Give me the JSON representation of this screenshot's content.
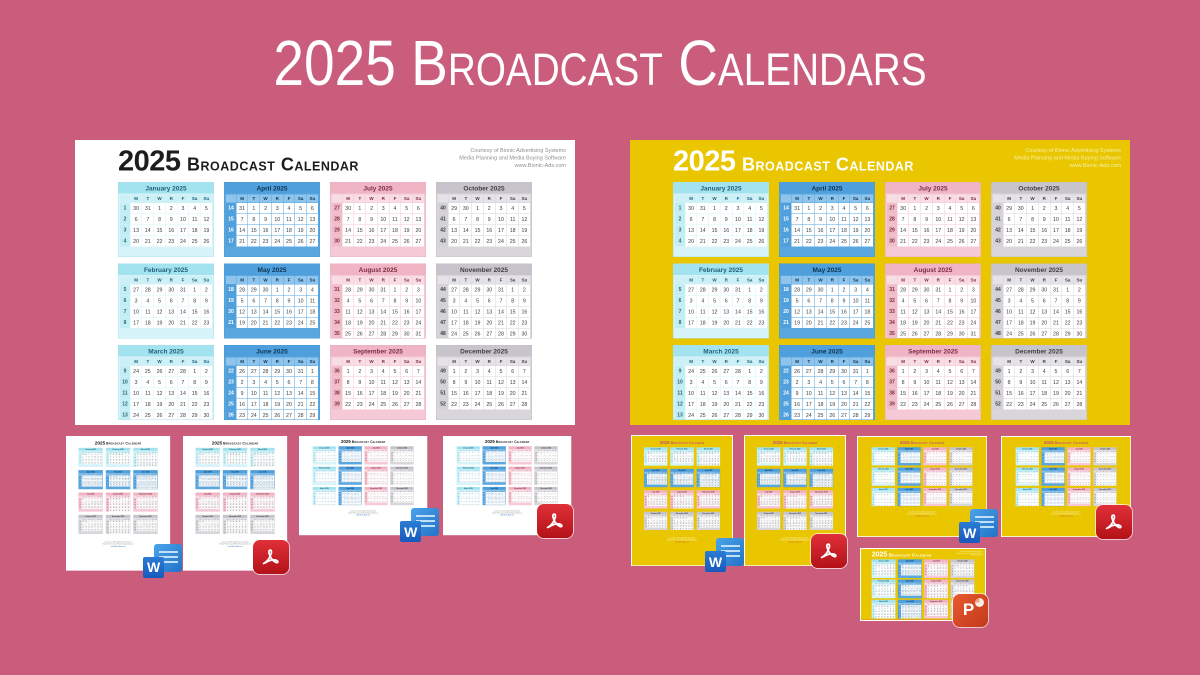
{
  "page": {
    "title": "2025 Broadcast Calendars",
    "background": "#ca5d7b",
    "yellow": "#eac600"
  },
  "calendar": {
    "year": "2025",
    "title": "Broadcast Calendar",
    "courtesy": [
      "Courtesy of Bionic Advertising Systems",
      "Media Planning and Media Buying Software",
      "www.Bionic-Ads.com"
    ],
    "day_headers": [
      "M",
      "T",
      "W",
      "R",
      "F",
      "Sa",
      "Su"
    ],
    "months": [
      {
        "name": "January 2025",
        "quarter": "q1",
        "weeks": [
          [
            1,
            30,
            31,
            1,
            2,
            3,
            4,
            5
          ],
          [
            2,
            6,
            7,
            8,
            9,
            10,
            11,
            12
          ],
          [
            3,
            13,
            14,
            15,
            16,
            17,
            18,
            19
          ],
          [
            4,
            20,
            21,
            22,
            23,
            24,
            25,
            26
          ]
        ]
      },
      {
        "name": "February 2025",
        "quarter": "q1",
        "weeks": [
          [
            5,
            27,
            28,
            29,
            30,
            31,
            1,
            2
          ],
          [
            6,
            3,
            4,
            5,
            6,
            7,
            8,
            9
          ],
          [
            7,
            10,
            11,
            12,
            13,
            14,
            15,
            16
          ],
          [
            8,
            17,
            18,
            19,
            20,
            21,
            22,
            23
          ]
        ]
      },
      {
        "name": "March 2025",
        "quarter": "q1",
        "weeks": [
          [
            9,
            24,
            25,
            26,
            27,
            28,
            1,
            2
          ],
          [
            10,
            3,
            4,
            5,
            6,
            7,
            8,
            9
          ],
          [
            11,
            10,
            11,
            12,
            13,
            14,
            15,
            16
          ],
          [
            12,
            17,
            18,
            19,
            20,
            21,
            22,
            23
          ],
          [
            13,
            24,
            25,
            26,
            27,
            28,
            29,
            30
          ]
        ]
      },
      {
        "name": "April 2025",
        "quarter": "q2",
        "weeks": [
          [
            14,
            31,
            1,
            2,
            3,
            4,
            5,
            6
          ],
          [
            15,
            7,
            8,
            9,
            10,
            11,
            12,
            13
          ],
          [
            16,
            14,
            15,
            16,
            17,
            18,
            19,
            20
          ],
          [
            17,
            21,
            22,
            23,
            24,
            25,
            26,
            27
          ]
        ]
      },
      {
        "name": "May 2025",
        "quarter": "q2",
        "weeks": [
          [
            18,
            28,
            29,
            30,
            1,
            2,
            3,
            4
          ],
          [
            19,
            5,
            6,
            7,
            8,
            9,
            10,
            11
          ],
          [
            20,
            12,
            13,
            14,
            15,
            16,
            17,
            18
          ],
          [
            21,
            19,
            20,
            21,
            22,
            23,
            24,
            25
          ]
        ]
      },
      {
        "name": "June 2025",
        "quarter": "q2",
        "weeks": [
          [
            22,
            26,
            27,
            28,
            29,
            30,
            31,
            1
          ],
          [
            23,
            2,
            3,
            4,
            5,
            6,
            7,
            8
          ],
          [
            24,
            9,
            10,
            11,
            12,
            13,
            14,
            15
          ],
          [
            25,
            16,
            17,
            18,
            19,
            20,
            21,
            22
          ],
          [
            26,
            23,
            24,
            25,
            26,
            27,
            28,
            29
          ]
        ]
      },
      {
        "name": "July 2025",
        "quarter": "q3",
        "weeks": [
          [
            27,
            30,
            1,
            2,
            3,
            4,
            5,
            6
          ],
          [
            28,
            7,
            8,
            9,
            10,
            11,
            12,
            13
          ],
          [
            29,
            14,
            15,
            16,
            17,
            18,
            19,
            20
          ],
          [
            30,
            21,
            22,
            23,
            24,
            25,
            26,
            27
          ]
        ]
      },
      {
        "name": "August 2025",
        "quarter": "q3",
        "weeks": [
          [
            31,
            28,
            29,
            30,
            31,
            1,
            2,
            3
          ],
          [
            32,
            4,
            5,
            6,
            7,
            8,
            9,
            10
          ],
          [
            33,
            11,
            12,
            13,
            14,
            15,
            16,
            17
          ],
          [
            34,
            18,
            19,
            20,
            21,
            22,
            23,
            24
          ],
          [
            35,
            25,
            26,
            27,
            28,
            29,
            30,
            31
          ]
        ]
      },
      {
        "name": "September 2025",
        "quarter": "q3",
        "weeks": [
          [
            36,
            1,
            2,
            3,
            4,
            5,
            6,
            7
          ],
          [
            37,
            8,
            9,
            10,
            11,
            12,
            13,
            14
          ],
          [
            38,
            15,
            16,
            17,
            18,
            19,
            20,
            21
          ],
          [
            39,
            22,
            23,
            24,
            25,
            26,
            27,
            28
          ]
        ]
      },
      {
        "name": "October 2025",
        "quarter": "q4",
        "weeks": [
          [
            40,
            29,
            30,
            1,
            2,
            3,
            4,
            5
          ],
          [
            41,
            6,
            7,
            8,
            9,
            10,
            11,
            12
          ],
          [
            42,
            13,
            14,
            15,
            16,
            17,
            18,
            19
          ],
          [
            43,
            20,
            21,
            22,
            23,
            24,
            25,
            26
          ]
        ]
      },
      {
        "name": "November 2025",
        "quarter": "q4",
        "weeks": [
          [
            44,
            27,
            28,
            29,
            30,
            31,
            1,
            2
          ],
          [
            45,
            3,
            4,
            5,
            6,
            7,
            8,
            9
          ],
          [
            46,
            10,
            11,
            12,
            13,
            14,
            15,
            16
          ],
          [
            47,
            17,
            18,
            19,
            20,
            21,
            22,
            23
          ],
          [
            48,
            24,
            25,
            26,
            27,
            28,
            29,
            30
          ]
        ]
      },
      {
        "name": "December 2025",
        "quarter": "q4",
        "weeks": [
          [
            49,
            1,
            2,
            3,
            4,
            5,
            6,
            7
          ],
          [
            50,
            8,
            9,
            10,
            11,
            12,
            13,
            14
          ],
          [
            51,
            15,
            16,
            17,
            18,
            19,
            20,
            21
          ],
          [
            52,
            22,
            23,
            24,
            25,
            26,
            27,
            28
          ]
        ]
      }
    ]
  },
  "quarters": {
    "q1": {
      "head": "#a3e3ef",
      "block": "#d7f4fa",
      "dayrow": "#cdf0f7",
      "weekcol": "#c3edf5",
      "border": "#7ed2e4",
      "text": "#20607c",
      "wktext": "#2a6478"
    },
    "q2": {
      "head": "#4f9fdc",
      "block": "#5aa7e0",
      "dayrow": "#8fc5ed",
      "weekcol": "#4f9fdc",
      "border": "#3f8ecb",
      "text": "#0e3350",
      "wktext": "#ffffff"
    },
    "q3": {
      "head": "#efb5c5",
      "block": "#f5c9d5",
      "dayrow": "#f9dde4",
      "weekcol": "#f1bcca",
      "border": "#dd9bae",
      "text": "#7e2d42",
      "wktext": "#7e2d42"
    },
    "q4": {
      "head": "#c7c4cb",
      "block": "#d8d6db",
      "dayrow": "#e5e3e8",
      "weekcol": "#d4d2d7",
      "border": "#aeabb3",
      "text": "#413f46",
      "wktext": "#413f46"
    }
  },
  "files": {
    "word_label": "W",
    "powerpoint_label": "P"
  },
  "items": [
    {
      "kind": "preview",
      "theme": "white",
      "layout": "widescreen",
      "format": null
    },
    {
      "kind": "preview",
      "theme": "yellow",
      "layout": "widescreen",
      "format": null
    },
    {
      "kind": "download",
      "theme": "white",
      "layout": "portrait",
      "format": "word"
    },
    {
      "kind": "download",
      "theme": "white",
      "layout": "portrait",
      "format": "pdf"
    },
    {
      "kind": "download",
      "theme": "white",
      "layout": "landscape",
      "format": "word"
    },
    {
      "kind": "download",
      "theme": "white",
      "layout": "landscape",
      "format": "pdf"
    },
    {
      "kind": "download",
      "theme": "yellow",
      "layout": "portrait",
      "format": "word"
    },
    {
      "kind": "download",
      "theme": "yellow",
      "layout": "portrait",
      "format": "pdf"
    },
    {
      "kind": "download",
      "theme": "yellow",
      "layout": "landscape",
      "format": "word"
    },
    {
      "kind": "download",
      "theme": "yellow",
      "layout": "landscape",
      "format": "pdf"
    },
    {
      "kind": "download",
      "theme": "yellow",
      "layout": "widescreen",
      "format": "powerpoint"
    }
  ]
}
